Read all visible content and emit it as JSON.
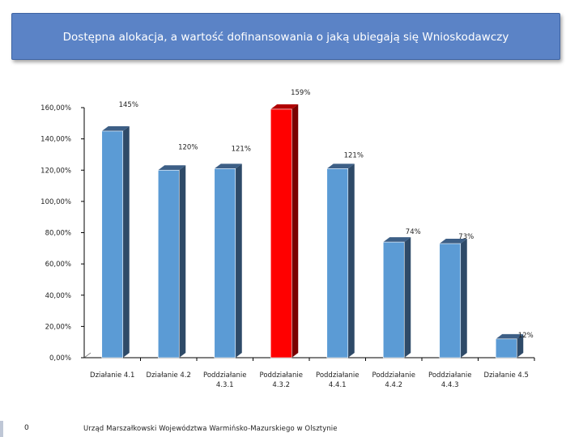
{
  "title": "Dostępna alokacja, a wartość dofinansowania o jaką ubiegają się Wnioskodawczy",
  "footer": {
    "slide_number": "0",
    "organization": "Urząd Marszałkowski Województwa Warmińsko-Mazurskiego w Olsztynie"
  },
  "chart_data": {
    "type": "bar",
    "title": "Dostępna alokacja, a wartość dofinansowania o jaką ubiegają się Wnioskodawczy",
    "categories": [
      [
        "Działanie 4.1"
      ],
      [
        "Działanie 4.2"
      ],
      [
        "Poddziałanie",
        "4.3.1"
      ],
      [
        "Poddziałanie",
        "4.3.2"
      ],
      [
        "Poddziałanie",
        "4.4.1"
      ],
      [
        "Poddziałanie",
        "4.4.2"
      ],
      [
        "Poddziałanie",
        "4.4.3"
      ],
      [
        "Działanie 4.5"
      ]
    ],
    "values": [
      145,
      120,
      121,
      159,
      121,
      74,
      73,
      12
    ],
    "data_labels": [
      "145%",
      "120%",
      "121%",
      "159%",
      "121%",
      "74%",
      "73%",
      "12%"
    ],
    "highlight_index": 3,
    "colors": {
      "bar": "#5b9bd5",
      "bar_side": "#2e4a68",
      "bar_top": "#3d5f86",
      "highlight": "#ff0000",
      "highlight_side": "#7a0000",
      "highlight_top": "#b00000"
    },
    "y_ticks": [
      "0,00%",
      "20,00%",
      "40,00%",
      "60,00%",
      "80,00%",
      "100,00%",
      "120,00%",
      "140,00%",
      "160,00%"
    ],
    "ylim": [
      0,
      160
    ],
    "xlabel": "",
    "ylabel": "",
    "legend": "none"
  }
}
